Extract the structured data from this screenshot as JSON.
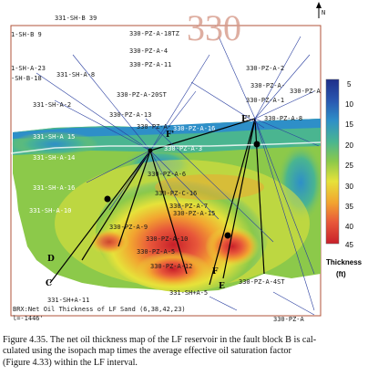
{
  "map": {
    "big_label": "330",
    "north_label": "N",
    "bottom_line_1": "BRX:Net Oil Thickness of LF Sand (6,38,42,23)",
    "bottom_line_2": "l=-1446'",
    "colorbar": {
      "title": "Thickness",
      "unit": "(ft)",
      "ticks": [
        "5",
        "10",
        "15",
        "20",
        "25",
        "30",
        "35",
        "40",
        "45"
      ],
      "colors": [
        "#1f2f8a",
        "#2a57b0",
        "#2e8fc8",
        "#4ab590",
        "#8cc94a",
        "#e6e23a",
        "#f2a430",
        "#e8573a",
        "#c8202a"
      ]
    },
    "points": [
      "C",
      "D",
      "E",
      "F",
      "E'",
      "F'"
    ],
    "well_labels": [
      "331-SH-B 39",
      "1-SH-B 9",
      "330-PZ-A-18TZ",
      "330-PZ-A-4",
      "330-PZ-A-11",
      "1-SH-A-23",
      "-SH-B-18",
      "331-SH-A-8",
      "330-PZ-A-20ST",
      "330-PZ-A-",
      "331-SH-A-2",
      "330-PZ-A-13",
      "330-PZ-A-1",
      "330-PZ-A-2",
      "330-PZ-A",
      "330-PZ-A-",
      "331-SH-A 15",
      "330-PZ-A-8",
      "330-PZ-A-16",
      "331-SH-A-14",
      "330-PZ-A-3",
      "331-SH-A-16",
      "330-PZ-A-6",
      "330-PZ-C-16",
      "330-PZ-A-7",
      "331-SH-A-10",
      "330-PZ-A-15",
      "330-PZ-A-9",
      "330-PZ-A-10",
      "330-PZ-A-5",
      "330-PZ-A-12",
      "331-SH+A-5",
      "331-SH+A-11",
      "330-PZ-A-4ST",
      "330-PZ-A"
    ]
  },
  "caption": {
    "line1": "Figure 4.35.  The net oil thickness map of the LF reservoir in the fault block B is cal-",
    "line2": "culated using the isopach map times the average effective oil saturation factor",
    "line3": "(Figure 4.33) within the LF interval."
  }
}
